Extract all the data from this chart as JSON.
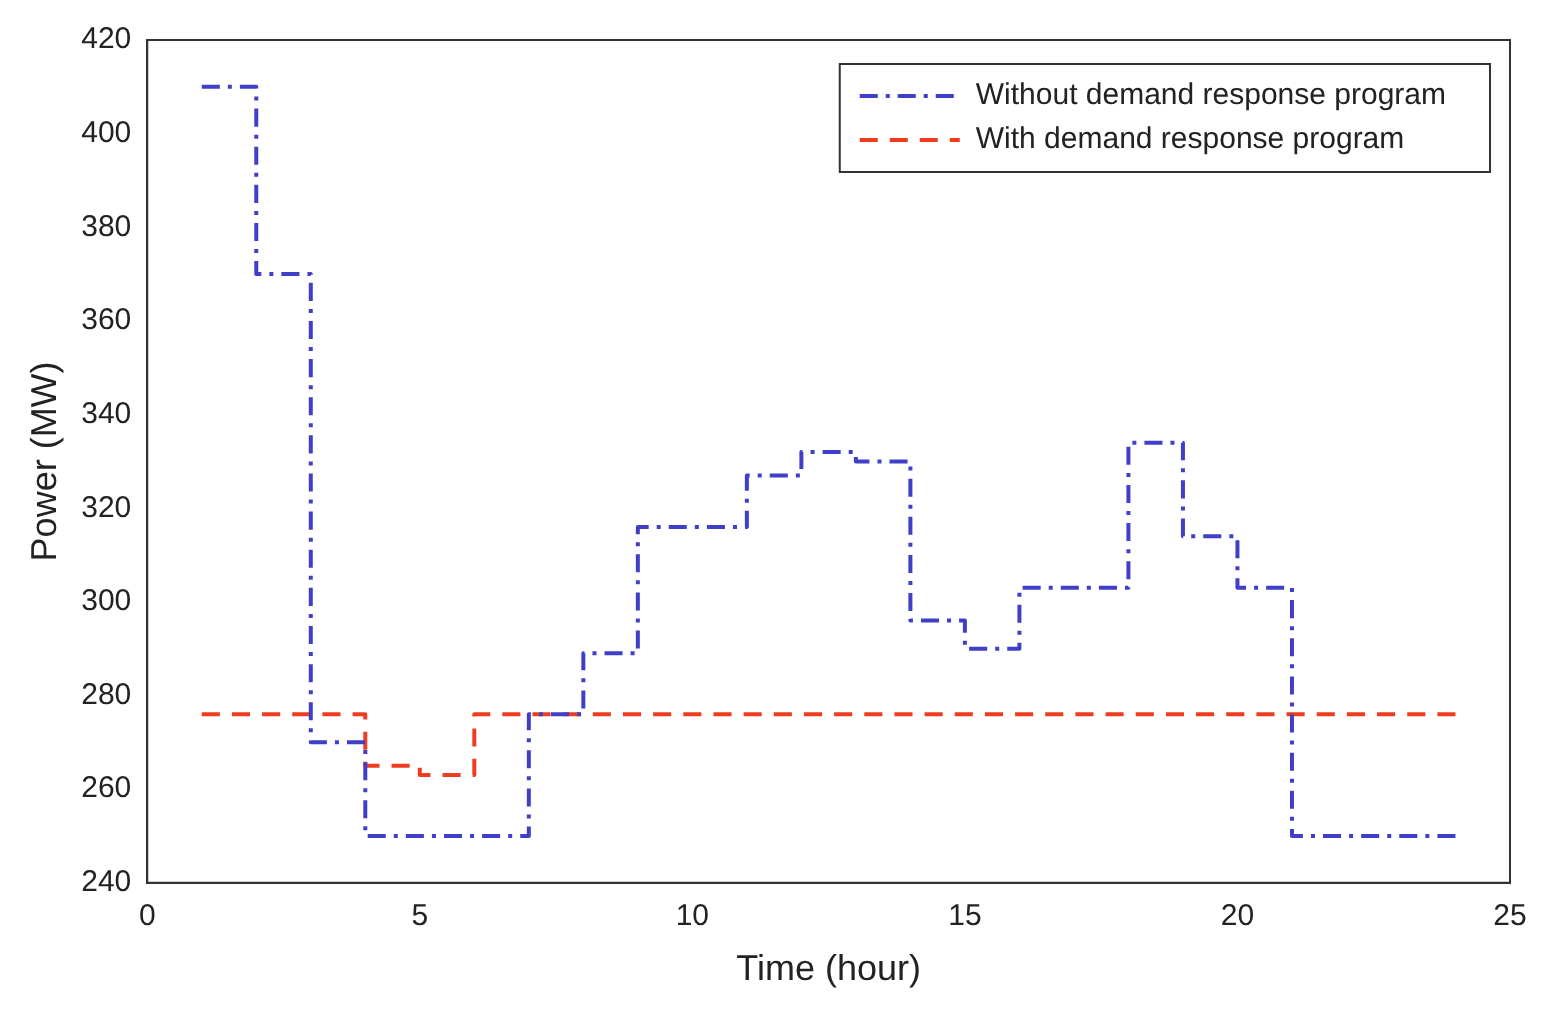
{
  "chart_data": {
    "type": "step",
    "xlabel": "Time (hour)",
    "ylabel": "Power (MW)",
    "x": [
      1,
      2,
      3,
      4,
      5,
      6,
      7,
      8,
      9,
      10,
      11,
      12,
      13,
      14,
      15,
      16,
      17,
      18,
      19,
      20,
      21,
      22,
      23,
      24
    ],
    "series": [
      {
        "name": "Without demand response program",
        "color": "#3f3fc8",
        "line_style": "dashdot",
        "values": [
          410,
          370,
          270,
          250,
          250,
          250,
          276,
          289,
          316,
          316,
          327,
          332,
          330,
          296,
          290,
          303,
          303,
          334,
          314,
          303,
          250,
          250,
          250,
          250
        ]
      },
      {
        "name": "With demand response program",
        "color": "#f03c1e",
        "line_style": "dashed",
        "values": [
          276,
          276,
          276,
          265,
          263,
          276,
          276,
          276,
          276,
          276,
          276,
          276,
          276,
          276,
          276,
          276,
          276,
          276,
          276,
          276,
          276,
          276,
          276,
          276
        ]
      }
    ],
    "xlim": [
      0,
      25
    ],
    "xticks": [
      0,
      5,
      10,
      15,
      20,
      25
    ],
    "ylim": [
      240,
      420
    ],
    "yticks": [
      240,
      260,
      280,
      300,
      320,
      340,
      360,
      380,
      400,
      420
    ],
    "legend": "top right",
    "grid": false
  }
}
